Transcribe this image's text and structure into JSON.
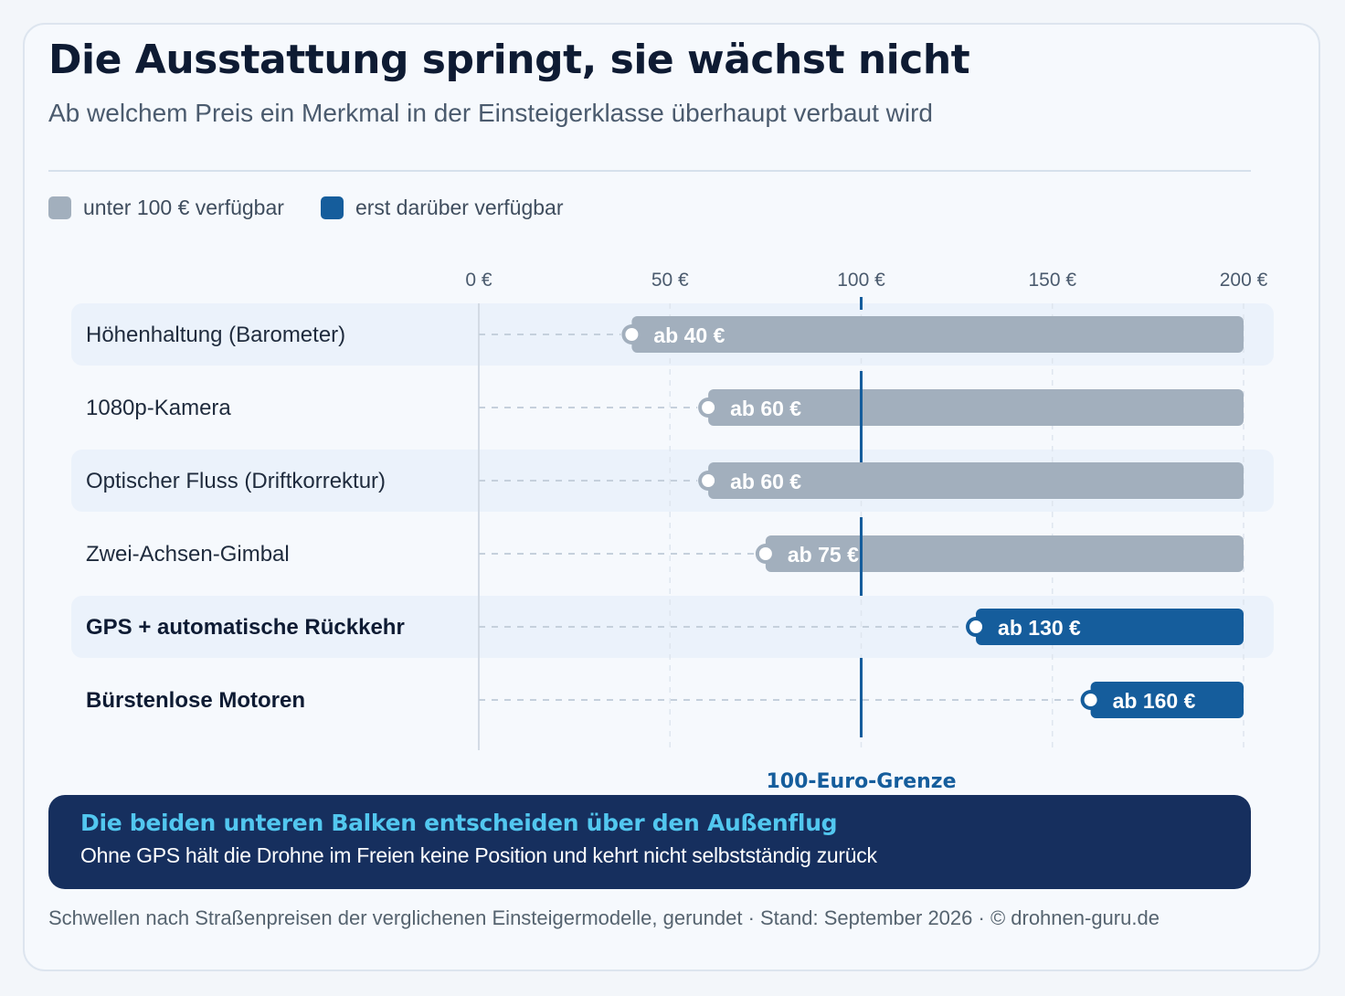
{
  "header": {
    "title": "Die Ausstattung springt, sie wächst nicht",
    "subtitle": "Ab welchem Preis ein Merkmal in der Einsteigerklasse überhaupt verbaut wird"
  },
  "legend": {
    "items": [
      {
        "label": "unter 100 € verfügbar",
        "color": "#a2afbd"
      },
      {
        "label": "erst darüber verfügbar",
        "color": "#155d9c"
      }
    ]
  },
  "chart_data": {
    "type": "bar",
    "orientation": "horizontal",
    "xlim": [
      0,
      200
    ],
    "ticks": [
      {
        "value": 0,
        "label": "0 €"
      },
      {
        "value": 50,
        "label": "50 €"
      },
      {
        "value": 100,
        "label": "100 €"
      },
      {
        "value": 150,
        "label": "150 €"
      },
      {
        "value": 200,
        "label": "200 €"
      }
    ],
    "categories": [
      "Höhenhaltung (Barometer)",
      "1080p-Kamera",
      "Optischer Fluss (Driftkorrektur)",
      "Zwei-Achsen-Gimbal",
      "GPS + automatische Rückkehr",
      "Bürstenlose Motoren"
    ],
    "values": [
      40,
      60,
      60,
      75,
      130,
      160
    ],
    "value_labels": [
      "ab 40 €",
      "ab 60 €",
      "ab 60 €",
      "ab 75 €",
      "ab 130 €",
      "ab 160 €"
    ],
    "groups": [
      "unter",
      "unter",
      "unter",
      "unter",
      "darueber",
      "darueber"
    ],
    "bar_end": 200,
    "threshold": {
      "value": 100,
      "label": "100-Euro-Grenze"
    },
    "grid": true,
    "legend_position": "top-left",
    "colors": {
      "below": "#a2afbd",
      "above": "#155d9c",
      "threshold": "#155d9c",
      "row_band": "#ebf2fb"
    }
  },
  "callout": {
    "title": "Die beiden unteren Balken entscheiden über den Außenflug",
    "text": "Ohne GPS hält die Drohne im Freien keine Position und kehrt nicht selbstständig zurück"
  },
  "footer": {
    "text": "Schwellen nach Straßenpreisen der verglichenen Einsteigermodelle, gerundet · Stand: September 2026 · © drohnen-guru.de"
  }
}
